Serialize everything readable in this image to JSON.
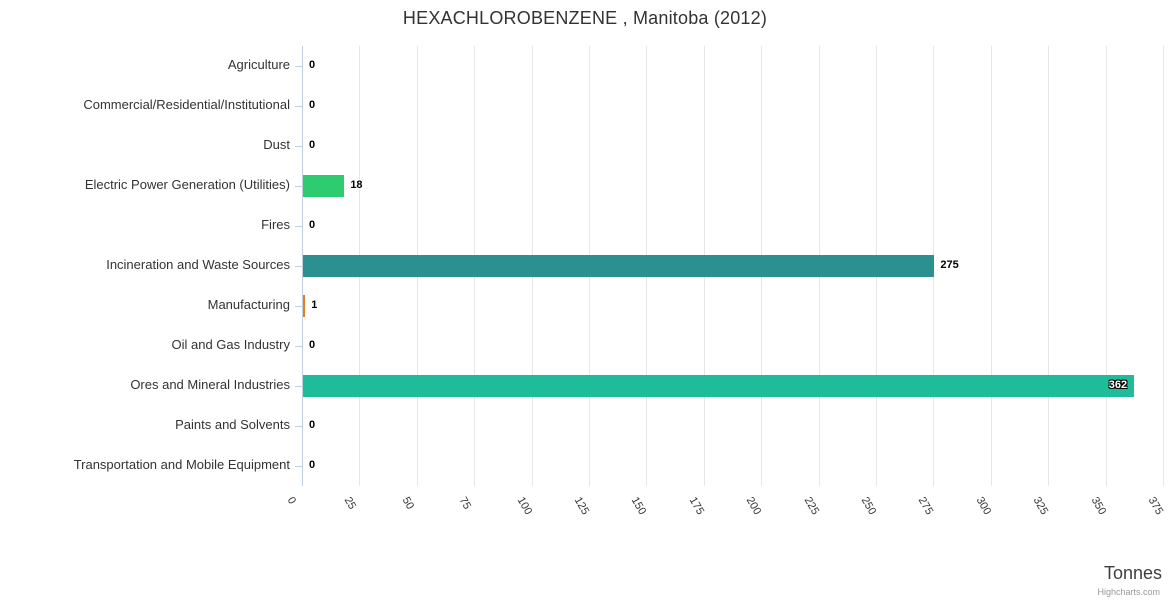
{
  "chart": {
    "title": "HEXACHLOROBENZENE , Manitoba (2012)",
    "axis_title": "Tonnes",
    "credits_label": "Highcharts.com"
  },
  "colors": {
    "grid_line": "#e6e6e6",
    "axis_line": "#c0d0e0",
    "title_text": "#333333",
    "label_text": "#333333",
    "credits_text": "#999999"
  },
  "chart_data": {
    "type": "bar",
    "title": "HEXACHLOROBENZENE , Manitoba (2012)",
    "xlabel": "Tonnes",
    "ylabel": "",
    "categories": [
      "Agriculture",
      "Commercial/Residential/Institutional",
      "Dust",
      "Electric Power Generation (Utilities)",
      "Fires",
      "Incineration and Waste Sources",
      "Manufacturing",
      "Oil and Gas Industry",
      "Ores and Mineral Industries",
      "Paints and Solvents",
      "Transportation and Mobile Equipment"
    ],
    "values": [
      0,
      0,
      0,
      18,
      0,
      275,
      1,
      0,
      362,
      0,
      0
    ],
    "bar_colors": [
      "#7cb5ec",
      "#434348",
      "#90ed7d",
      "#2ecc71",
      "#f7a35c",
      "#2b908f",
      "#e67e22",
      "#8085e9",
      "#1fbc99",
      "#f15c80",
      "#e4d354"
    ],
    "xlim": [
      0,
      375
    ],
    "xticks": [
      0,
      25,
      50,
      75,
      100,
      125,
      150,
      175,
      200,
      225,
      250,
      275,
      300,
      325,
      350,
      375
    ],
    "tick_rotation_deg": 60,
    "grid": true,
    "legend": false,
    "unit": "Tonnes"
  }
}
